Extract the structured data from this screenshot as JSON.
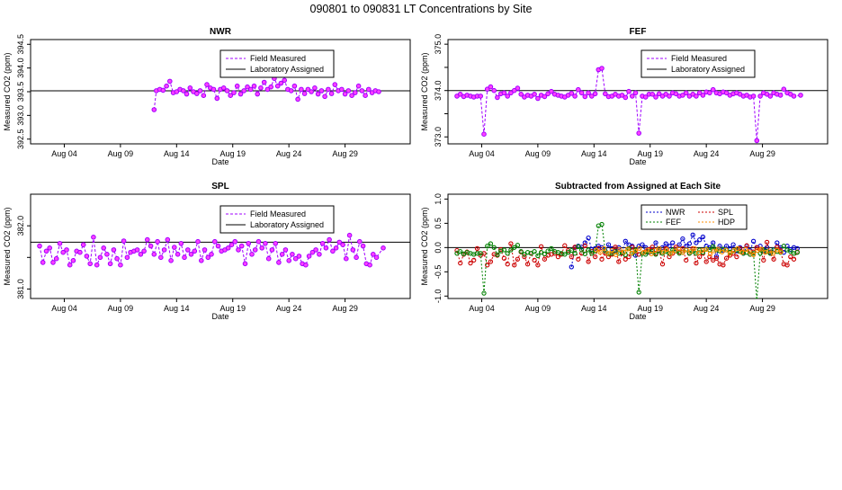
{
  "figure": {
    "title": "090801  to  090831 LT Concentrations by Site"
  },
  "colors": {
    "field": "#a000ff",
    "field_fill": "#ff40ff",
    "lab": "#000000",
    "nwr": "#0000cc",
    "fef": "#008000",
    "spl": "#cc0000",
    "hdp": "#ff8c00"
  },
  "chart_data": [
    {
      "id": "NWR",
      "type": "line",
      "title": "NWR",
      "xlabel": "Date",
      "ylabel": "Measured CO2 (ppm)",
      "xlim": [
        0,
        33.8
      ],
      "ylim": [
        392.4,
        394.6
      ],
      "xticks": [
        3,
        8,
        13,
        18,
        23,
        28
      ],
      "xtick_labels": [
        "Aug 04",
        "Aug 09",
        "Aug 14",
        "Aug 19",
        "Aug 24",
        "Aug 29"
      ],
      "yticks": [
        392.5,
        393.0,
        393.5,
        394.0,
        394.5
      ],
      "ytick_labels": [
        "392.5",
        "393.0",
        "393.5",
        "394.0",
        "394.5"
      ],
      "ref_value": 393.52,
      "legend": [
        "Field Measured",
        "Laboratory Assigned"
      ],
      "legend_position": "top-right",
      "x": [
        11.0,
        11.2,
        11.5,
        11.8,
        12.1,
        12.4,
        12.7,
        13.0,
        13.3,
        13.6,
        13.9,
        14.2,
        14.5,
        14.8,
        15.1,
        15.4,
        15.7,
        16.0,
        16.3,
        16.6,
        16.9,
        17.2,
        17.5,
        17.8,
        18.1,
        18.4,
        18.7,
        19.0,
        19.3,
        19.6,
        19.9,
        20.2,
        20.5,
        20.8,
        21.1,
        21.4,
        21.7,
        22.0,
        22.3,
        22.6,
        22.9,
        23.2,
        23.5,
        23.8,
        24.1,
        24.4,
        24.7,
        25.0,
        25.3,
        25.6,
        25.9,
        26.2,
        26.5,
        26.8,
        27.1,
        27.4,
        27.7,
        28.0,
        28.3,
        28.6,
        28.9,
        29.2,
        29.5,
        29.8,
        30.1,
        30.4,
        30.7,
        31.0
      ],
      "values": [
        393.12,
        393.52,
        393.55,
        393.53,
        393.62,
        393.72,
        393.48,
        393.5,
        393.55,
        393.52,
        393.45,
        393.58,
        393.5,
        393.46,
        393.52,
        393.42,
        393.65,
        393.58,
        393.55,
        393.36,
        393.55,
        393.58,
        393.52,
        393.42,
        393.48,
        393.62,
        393.45,
        393.52,
        393.6,
        393.55,
        393.62,
        393.45,
        393.58,
        393.7,
        393.55,
        393.6,
        393.78,
        393.62,
        393.68,
        393.74,
        393.55,
        393.52,
        393.62,
        393.34,
        393.55,
        393.46,
        393.55,
        393.5,
        393.58,
        393.45,
        393.52,
        393.4,
        393.55,
        393.46,
        393.65,
        393.52,
        393.55,
        393.45,
        393.52,
        393.42,
        393.48,
        393.62,
        393.52,
        393.42,
        393.55,
        393.48,
        393.52,
        393.5
      ]
    },
    {
      "id": "FEF",
      "type": "line",
      "title": "FEF",
      "xlabel": "Date",
      "ylabel": "Measured CO2 (ppm)",
      "xlim": [
        0,
        33.8
      ],
      "ylim": [
        372.85,
        375.1
      ],
      "xticks": [
        3,
        8,
        13,
        18,
        23,
        28
      ],
      "xtick_labels": [
        "Aug 04",
        "Aug 09",
        "Aug 14",
        "Aug 19",
        "Aug 24",
        "Aug 29"
      ],
      "yticks": [
        373.0,
        373.5,
        374.0,
        374.5,
        375.0
      ],
      "ytick_labels": [
        "373.0",
        "",
        "374.0",
        "",
        "375.0"
      ],
      "ref_value": 374.0,
      "legend": [
        "Field Measured",
        "Laboratory Assigned"
      ],
      "legend_position": "top-right",
      "x": [
        0.8,
        1.1,
        1.4,
        1.7,
        2.0,
        2.3,
        2.6,
        2.9,
        3.2,
        3.5,
        3.8,
        4.1,
        4.4,
        4.7,
        5.0,
        5.3,
        5.6,
        5.9,
        6.2,
        6.5,
        6.8,
        7.1,
        7.4,
        7.7,
        8.0,
        8.3,
        8.6,
        8.9,
        9.2,
        9.5,
        9.8,
        10.1,
        10.4,
        10.7,
        11.0,
        11.3,
        11.6,
        11.9,
        12.2,
        12.5,
        12.8,
        13.1,
        13.4,
        13.7,
        14.0,
        14.3,
        14.6,
        14.9,
        15.2,
        15.5,
        15.8,
        16.1,
        16.4,
        16.7,
        17.0,
        17.3,
        17.6,
        17.9,
        18.2,
        18.5,
        18.8,
        19.1,
        19.4,
        19.7,
        20.0,
        20.3,
        20.6,
        20.9,
        21.2,
        21.5,
        21.8,
        22.1,
        22.4,
        22.7,
        23.0,
        23.3,
        23.6,
        23.9,
        24.2,
        24.5,
        24.8,
        25.1,
        25.4,
        25.7,
        26.0,
        26.3,
        26.6,
        26.9,
        27.2,
        27.5,
        27.8,
        28.1,
        28.4,
        28.7,
        29.0,
        29.3,
        29.6,
        29.9,
        30.2,
        30.5,
        30.8,
        31.4
      ],
      "values": [
        373.88,
        373.92,
        373.87,
        373.9,
        373.88,
        373.86,
        373.88,
        373.88,
        373.06,
        374.03,
        374.08,
        374.0,
        373.85,
        373.93,
        373.95,
        373.88,
        373.95,
        374.0,
        374.05,
        373.92,
        373.86,
        373.9,
        373.88,
        373.92,
        373.83,
        373.9,
        373.87,
        373.93,
        373.98,
        373.92,
        373.9,
        373.88,
        373.86,
        373.9,
        373.94,
        373.88,
        374.02,
        373.95,
        373.87,
        373.95,
        373.88,
        373.93,
        374.45,
        374.48,
        373.93,
        373.87,
        373.88,
        373.92,
        373.88,
        373.9,
        373.85,
        373.98,
        373.88,
        373.95,
        373.08,
        373.88,
        373.86,
        373.92,
        373.92,
        373.86,
        373.93,
        373.88,
        373.92,
        373.88,
        373.95,
        373.93,
        373.88,
        373.9,
        373.95,
        373.88,
        373.92,
        373.88,
        373.95,
        373.9,
        373.97,
        373.95,
        374.02,
        373.95,
        373.93,
        373.97,
        373.95,
        373.9,
        373.93,
        373.95,
        373.92,
        373.88,
        373.9,
        373.86,
        373.88,
        372.92,
        373.88,
        373.95,
        373.92,
        373.88,
        373.95,
        373.92,
        373.9,
        374.03,
        373.95,
        373.92,
        373.88,
        373.9
      ]
    },
    {
      "id": "SPL",
      "type": "line",
      "title": "SPL",
      "xlabel": "Date",
      "ylabel": "Measured CO2 (ppm)",
      "xlim": [
        0,
        33.8
      ],
      "ylim": [
        380.85,
        382.5
      ],
      "xticks": [
        3,
        8,
        13,
        18,
        23,
        28
      ],
      "xtick_labels": [
        "Aug 04",
        "Aug 09",
        "Aug 14",
        "Aug 19",
        "Aug 24",
        "Aug 29"
      ],
      "yticks": [
        381.0,
        381.5,
        382.0
      ],
      "ytick_labels": [
        "381.0",
        "",
        "382.0"
      ],
      "ref_value": 381.74,
      "legend": [
        "Field Measured",
        "Laboratory Assigned"
      ],
      "legend_position": "top-right",
      "x": [
        0.8,
        1.1,
        1.4,
        1.7,
        2.0,
        2.3,
        2.6,
        2.9,
        3.2,
        3.5,
        3.8,
        4.1,
        4.4,
        4.7,
        5.0,
        5.3,
        5.6,
        5.9,
        6.2,
        6.5,
        6.8,
        7.1,
        7.4,
        7.7,
        8.0,
        8.3,
        8.6,
        8.9,
        9.2,
        9.5,
        9.8,
        10.1,
        10.4,
        10.7,
        11.0,
        11.3,
        11.6,
        11.9,
        12.2,
        12.5,
        12.8,
        13.1,
        13.4,
        13.7,
        14.0,
        14.3,
        14.6,
        14.9,
        15.2,
        15.5,
        15.8,
        16.1,
        16.4,
        16.7,
        17.0,
        17.3,
        17.6,
        17.9,
        18.2,
        18.5,
        18.8,
        19.1,
        19.4,
        19.7,
        20.0,
        20.3,
        20.6,
        20.9,
        21.2,
        21.5,
        21.8,
        22.1,
        22.4,
        22.7,
        23.0,
        23.3,
        23.6,
        23.9,
        24.2,
        24.5,
        24.8,
        25.1,
        25.4,
        25.7,
        26.0,
        26.3,
        26.6,
        26.9,
        27.2,
        27.5,
        27.8,
        28.1,
        28.4,
        28.7,
        29.0,
        29.3,
        29.6,
        29.9,
        30.2,
        30.5,
        30.8,
        31.4
      ],
      "values": [
        381.68,
        381.42,
        381.6,
        381.65,
        381.42,
        381.48,
        381.72,
        381.58,
        381.62,
        381.38,
        381.45,
        381.6,
        381.58,
        381.7,
        381.52,
        381.4,
        381.82,
        381.38,
        381.5,
        381.65,
        381.55,
        381.4,
        381.62,
        381.48,
        381.38,
        381.76,
        381.5,
        381.58,
        381.6,
        381.62,
        381.55,
        381.6,
        381.78,
        381.68,
        381.55,
        381.75,
        381.5,
        381.62,
        381.78,
        381.45,
        381.66,
        381.55,
        381.72,
        381.5,
        381.62,
        381.55,
        381.6,
        381.75,
        381.45,
        381.62,
        381.5,
        381.55,
        381.75,
        381.68,
        381.6,
        381.62,
        381.65,
        381.7,
        381.75,
        381.62,
        381.68,
        381.4,
        381.72,
        381.55,
        381.62,
        381.75,
        381.65,
        381.72,
        381.48,
        381.62,
        381.72,
        381.42,
        381.55,
        381.62,
        381.45,
        381.55,
        381.48,
        381.52,
        381.4,
        381.38,
        381.52,
        381.58,
        381.62,
        381.55,
        381.72,
        381.65,
        381.78,
        381.6,
        381.65,
        381.74,
        381.7,
        381.48,
        381.85,
        381.62,
        381.5,
        381.75,
        381.68,
        381.4,
        381.38,
        381.55,
        381.5,
        381.65
      ]
    },
    {
      "id": "DIFF",
      "type": "line",
      "title": "Subtracted from Assigned at Each Site",
      "xlabel": "Date",
      "ylabel": "Measured CO2 (ppm)",
      "xlim": [
        0,
        33.8
      ],
      "ylim": [
        -1.05,
        1.1
      ],
      "xticks": [
        3,
        8,
        13,
        18,
        23,
        28
      ],
      "xtick_labels": [
        "Aug 04",
        "Aug 09",
        "Aug 14",
        "Aug 19",
        "Aug 24",
        "Aug 29"
      ],
      "yticks": [
        -1.0,
        -0.5,
        0.0,
        0.5,
        1.0
      ],
      "ytick_labels": [
        "-1.0",
        "-0.5",
        "0.0",
        "0.5",
        "1.0"
      ],
      "ref_value": 0,
      "legend": [
        "NWR",
        "SPL",
        "FEF",
        "HDP"
      ],
      "legend_position": "top-right",
      "series": [
        {
          "name": "NWR",
          "color_key": "nwr",
          "x_start": 11.0,
          "x_step": 0.3,
          "values": [
            -0.4,
            0.0,
            0.03,
            0.01,
            0.1,
            0.2,
            -0.04,
            -0.02,
            0.03,
            0.0,
            -0.07,
            0.06,
            -0.02,
            -0.06,
            0.0,
            -0.1,
            0.13,
            0.06,
            0.03,
            -0.16,
            0.03,
            0.06,
            0.0,
            -0.1,
            -0.04,
            0.1,
            -0.07,
            0.0,
            0.08,
            0.03,
            0.1,
            -0.07,
            0.06,
            0.18,
            0.03,
            0.08,
            0.26,
            0.1,
            0.16,
            0.22,
            0.03,
            0.0,
            0.1,
            -0.18,
            0.03,
            -0.06,
            0.03,
            -0.02,
            0.06,
            -0.07,
            0.0,
            -0.12,
            0.03,
            -0.06,
            0.13,
            0.0,
            0.03,
            -0.07,
            0.0,
            -0.1,
            -0.04,
            0.1,
            0.0,
            -0.1,
            0.03,
            -0.04,
            0.0,
            -0.02
          ]
        },
        {
          "name": "SPL",
          "color_key": "spl",
          "x_start": 0.8,
          "x_step": 0.3,
          "values": [
            -0.06,
            -0.32,
            -0.14,
            -0.09,
            -0.32,
            -0.26,
            -0.02,
            -0.16,
            -0.12,
            -0.36,
            -0.29,
            -0.14,
            -0.16,
            -0.04,
            -0.22,
            -0.34,
            0.08,
            -0.36,
            -0.24,
            -0.09,
            -0.19,
            -0.34,
            -0.12,
            -0.26,
            -0.36,
            0.02,
            -0.24,
            -0.16,
            -0.14,
            -0.12,
            -0.19,
            -0.14,
            0.04,
            -0.06,
            -0.19,
            0.01,
            -0.24,
            -0.12,
            0.04,
            -0.29,
            -0.08,
            -0.19,
            -0.02,
            -0.24,
            -0.12,
            -0.19,
            -0.14,
            0.01,
            -0.29,
            -0.12,
            -0.24,
            -0.19,
            0.01,
            -0.06,
            -0.14,
            -0.12,
            -0.09,
            -0.04,
            0.01,
            -0.12,
            -0.06,
            -0.34,
            -0.02,
            -0.19,
            -0.12,
            0.01,
            -0.09,
            -0.02,
            -0.26,
            -0.12,
            -0.02,
            -0.32,
            -0.19,
            -0.12,
            -0.29,
            -0.19,
            -0.26,
            -0.22,
            -0.34,
            -0.36,
            -0.22,
            -0.16,
            -0.12,
            -0.19,
            -0.02,
            -0.09,
            0.04,
            -0.14,
            -0.09,
            0.0,
            -0.04,
            -0.26,
            0.11,
            -0.12,
            -0.24,
            0.01,
            -0.06,
            -0.34,
            -0.36,
            -0.19,
            -0.24,
            -0.09
          ]
        },
        {
          "name": "FEF",
          "color_key": "fef",
          "x_start": 0.8,
          "x_step": 0.3,
          "values": [
            -0.12,
            -0.08,
            -0.13,
            -0.1,
            -0.12,
            -0.14,
            -0.12,
            -0.12,
            -0.94,
            0.03,
            0.08,
            0.0,
            -0.15,
            -0.07,
            -0.05,
            -0.12,
            -0.05,
            0.0,
            0.05,
            -0.08,
            -0.14,
            -0.1,
            -0.12,
            -0.08,
            -0.17,
            -0.1,
            -0.13,
            -0.07,
            -0.02,
            -0.08,
            -0.1,
            -0.12,
            -0.14,
            -0.1,
            -0.06,
            -0.12,
            0.02,
            -0.05,
            -0.13,
            -0.05,
            -0.12,
            -0.07,
            0.45,
            0.48,
            -0.07,
            -0.13,
            -0.12,
            -0.08,
            -0.12,
            -0.1,
            -0.15,
            -0.02,
            -0.12,
            -0.05,
            -0.92,
            -0.12,
            -0.14,
            -0.08,
            -0.08,
            -0.14,
            -0.07,
            -0.12,
            -0.08,
            -0.12,
            -0.05,
            -0.07,
            -0.12,
            -0.1,
            -0.05,
            -0.12,
            -0.08,
            -0.12,
            -0.05,
            -0.1,
            -0.03,
            -0.05,
            0.02,
            -0.05,
            -0.07,
            -0.03,
            -0.05,
            -0.1,
            -0.07,
            -0.05,
            -0.08,
            -0.12,
            -0.1,
            -0.14,
            -0.12,
            -1.08,
            -0.12,
            -0.05,
            -0.08,
            -0.12,
            -0.05,
            -0.08,
            -0.1,
            0.03,
            -0.05,
            -0.08,
            -0.12,
            -0.1
          ]
        },
        {
          "name": "HDP",
          "color_key": "hdp",
          "x_start": 13.2,
          "x_step": 0.35,
          "values": [
            -0.05,
            -0.1,
            -0.02,
            -0.12,
            -0.06,
            -0.15,
            -0.04,
            -0.09,
            -0.03,
            -0.11,
            -0.07,
            -0.02,
            -0.1,
            -0.05,
            -0.13,
            -0.06,
            -0.02,
            -0.09,
            -0.04,
            -0.12,
            -0.07,
            -0.03,
            -0.1,
            -0.05,
            -0.08,
            -0.02,
            -0.11,
            -0.06,
            -0.04,
            -0.13,
            -0.07,
            -0.03,
            -0.09,
            -0.05,
            -0.12,
            -0.06,
            -0.02,
            -0.1,
            -0.04,
            -0.08,
            -0.15,
            -0.06,
            -0.03,
            -0.1,
            -0.07,
            -0.12,
            -0.05,
            -0.09
          ]
        }
      ]
    }
  ]
}
